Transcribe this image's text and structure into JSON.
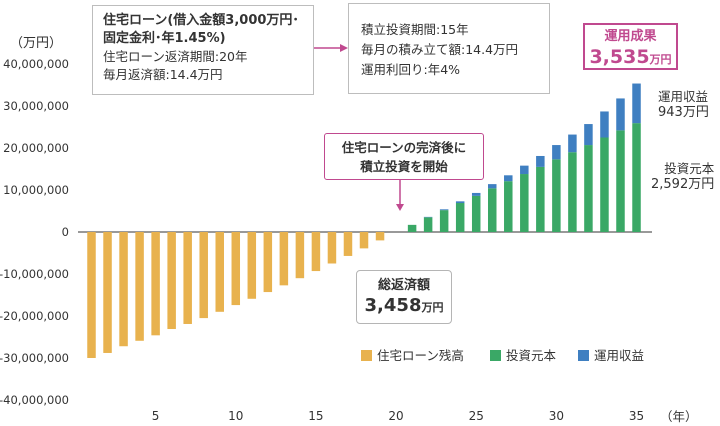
{
  "chart_data": {
    "type": "bar",
    "stacked": true,
    "y_unit_label": "（万円）",
    "x_unit_label": "（年）",
    "ylim": [
      -40000000,
      40000000
    ],
    "y_ticks": [
      40000000,
      30000000,
      20000000,
      10000000,
      0,
      -10000000,
      -20000000,
      -30000000,
      -40000000
    ],
    "y_tick_labels": [
      "40,000,000",
      "30,000,000",
      "20,000,000",
      "10,000,000",
      "0",
      "-10,000,000",
      "-20,000,000",
      "-30,000,000",
      "-40,000,000"
    ],
    "x_ticks": [
      5,
      10,
      15,
      20,
      25,
      30,
      35
    ],
    "x": [
      1,
      2,
      3,
      4,
      5,
      6,
      7,
      8,
      9,
      10,
      11,
      12,
      13,
      14,
      15,
      16,
      17,
      18,
      19,
      20,
      21,
      22,
      23,
      24,
      25,
      26,
      27,
      28,
      29,
      30,
      31,
      32,
      33,
      34,
      35
    ],
    "series": [
      {
        "name": "住宅ローン残高",
        "color": "#e8b24e",
        "values": [
          -30000000,
          -28800000,
          -27200000,
          -25900000,
          -24600000,
          -23100000,
          -21900000,
          -20500000,
          -19000000,
          -17400000,
          -15900000,
          -14300000,
          -12700000,
          -11000000,
          -9300000,
          -7500000,
          -5700000,
          -3900000,
          -2000000,
          0,
          0,
          0,
          0,
          0,
          0,
          0,
          0,
          0,
          0,
          0,
          0,
          0,
          0,
          0,
          0
        ]
      },
      {
        "name": "投資元本",
        "color": "#3aa866",
        "values": [
          0,
          0,
          0,
          0,
          0,
          0,
          0,
          0,
          0,
          0,
          0,
          0,
          0,
          0,
          0,
          0,
          0,
          0,
          0,
          0,
          1700000,
          3500000,
          5200000,
          6900000,
          8600000,
          10400000,
          12100000,
          13800000,
          15500000,
          17300000,
          19000000,
          20700000,
          22500000,
          24200000,
          25920000
        ]
      },
      {
        "name": "運用収益",
        "color": "#3f7fc1",
        "values": [
          0,
          0,
          0,
          0,
          0,
          0,
          0,
          0,
          0,
          0,
          0,
          0,
          0,
          0,
          0,
          0,
          0,
          0,
          0,
          0,
          0,
          100000,
          200000,
          400000,
          700000,
          1000000,
          1400000,
          2000000,
          2600000,
          3400000,
          4200000,
          5000000,
          6200000,
          7600000,
          9430000
        ]
      }
    ],
    "legend_position": "bottom-right"
  },
  "annotations": {
    "loan_box": {
      "title_line1": "住宅ローン(借入金額3,000万円･",
      "title_line2": "固定金利･年1.45%)",
      "line3": "住宅ローン返済期間:20年",
      "line4": "毎月返済額:14.4万円"
    },
    "invest_box": {
      "line1": "積立投資期間:15年",
      "line2": "毎月の積み立て額:14.4万円",
      "line3": "運用利回り:年4%"
    },
    "result_box": {
      "label": "運用成果",
      "value": "3,535",
      "unit": "万円"
    },
    "start_box": {
      "line1": "住宅ローンの完済後に",
      "line2": "積立投資を開始"
    },
    "total_box": {
      "label": "総返済額",
      "value": "3,458",
      "unit": "万円"
    },
    "return_side": {
      "label": "運用収益",
      "value": "943万円"
    },
    "principal_side": {
      "label": "投資元本",
      "value": "2,592万円"
    }
  },
  "colors": {
    "loan": "#e8b24e",
    "principal": "#3aa866",
    "return": "#3f7fc1",
    "accent": "#c0498f"
  }
}
